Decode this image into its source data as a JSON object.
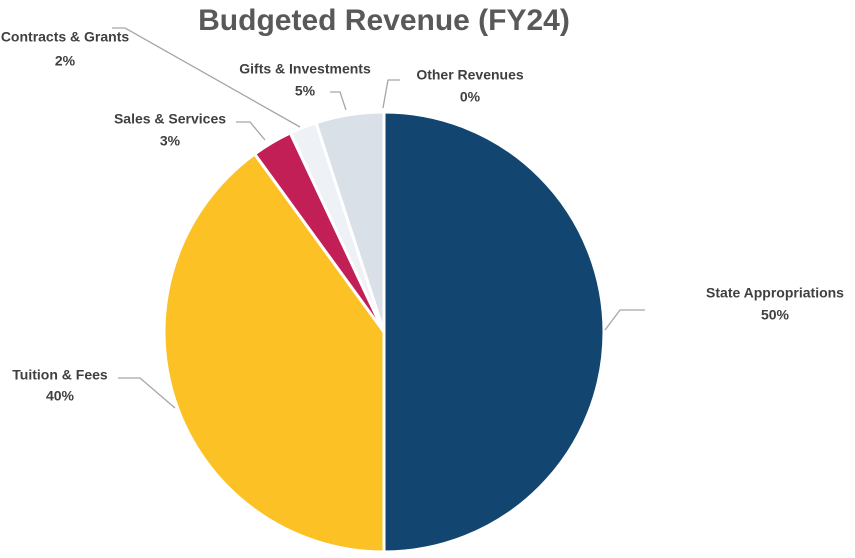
{
  "chart_data": {
    "type": "pie",
    "title": "Budgeted Revenue (FY24)",
    "categories": [
      "State Appropriations",
      "Tuition & Fees",
      "Sales & Services",
      "Contracts & Grants",
      "Gifts & Investments",
      "Other Revenues"
    ],
    "values": [
      50,
      40,
      3,
      2,
      5,
      0
    ],
    "value_labels": [
      "50%",
      "40%",
      "3%",
      "2%",
      "5%",
      "0%"
    ],
    "colors": [
      "#12456f",
      "#fcc225",
      "#c21f56",
      "#eef1f5",
      "#d9e0e8",
      "#b8c4d2"
    ]
  }
}
